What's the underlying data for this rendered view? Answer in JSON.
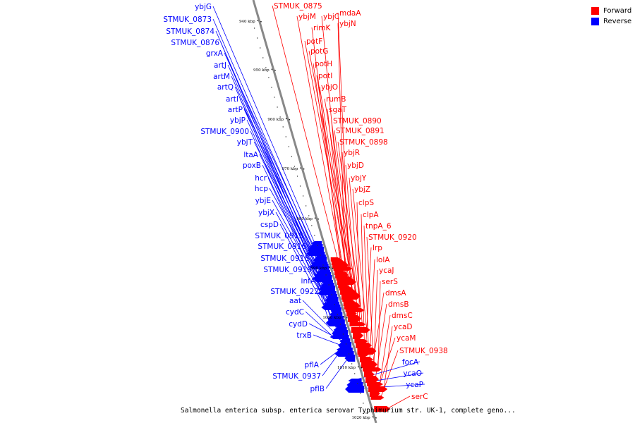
{
  "map": {
    "title": "Salmonella enterica subsp. enterica serovar Typhimurium str. UK-1, complete geno...",
    "backbone_color": "#888888",
    "legend": [
      {
        "label": "Forward",
        "color": "#ff0000"
      },
      {
        "label": "Reverse",
        "color": "#0000ff"
      }
    ],
    "scale_labels": [
      "940 kbp",
      "950 kbp",
      "960 kbp",
      "970 kbp",
      "980 kbp",
      "990 kbp",
      "1000 kbp",
      "1010 kbp",
      "1020 kbp"
    ],
    "forward_labels": [
      "STMUK_0875",
      "ybjM",
      "ybjC",
      "mdaA",
      "rimK",
      "ybjN",
      "potF",
      "potG",
      "potH",
      "potI",
      "ybjO",
      "rumB",
      "sgaT",
      "STMUK_0890",
      "STMUK_0891",
      "STMUK_0898",
      "ybjR",
      "ybjD",
      "ybjY",
      "ybjZ",
      "clpS",
      "clpA",
      "tnpA_6",
      "STMUK_0920",
      "lrp",
      "lolA",
      "ycaJ",
      "serS",
      "dmsA",
      "dmsB",
      "dmsC",
      "ycaD",
      "ycaM",
      "STMUK_0938",
      "serC"
    ],
    "reverse_labels": [
      "ybjG",
      "STMUK_0873",
      "STMUK_0874",
      "STMUK_0876",
      "grxA",
      "artJ",
      "artM",
      "artQ",
      "artI",
      "artP",
      "ybjP",
      "STMUK_0900",
      "ybjT",
      "ltaA",
      "poxB",
      "hcr",
      "hcp",
      "ybjE",
      "ybjX",
      "cspD",
      "STMUK_0915",
      "STMUK_0916",
      "STMUK_0918",
      "STMUK_0919",
      "infA",
      "STMUK_0922",
      "aat",
      "cydC",
      "cydD",
      "trxB",
      "pflA",
      "STMUK_0937",
      "pflB",
      "focA",
      "ycaO",
      "ycaP"
    ]
  }
}
